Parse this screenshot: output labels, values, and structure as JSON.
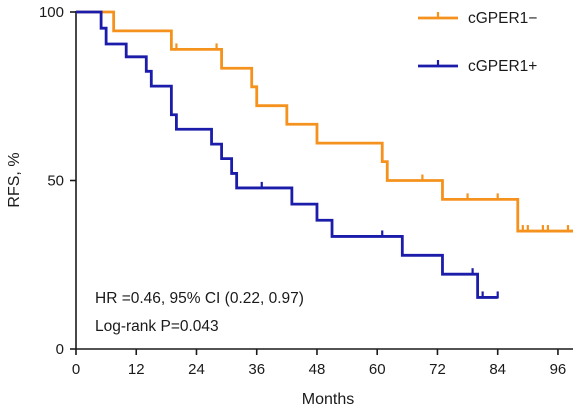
{
  "chart_data": {
    "type": "line",
    "subtype": "kaplan-meier step",
    "xlabel": "Months",
    "ylabel": "RFS, %",
    "xlim": [
      0,
      99
    ],
    "ylim": [
      0,
      100
    ],
    "xticks": [
      0,
      12,
      24,
      36,
      48,
      60,
      72,
      84,
      96
    ],
    "yticks": [
      0,
      50,
      100
    ],
    "grid": false,
    "legend_position": "top-right",
    "series": [
      {
        "name": "cGPER1−",
        "color": "#F5921E",
        "steps": [
          [
            0,
            100
          ],
          [
            7.5,
            94.4
          ],
          [
            19,
            88.9
          ],
          [
            29,
            83.3
          ],
          [
            35,
            77.8
          ],
          [
            36,
            72.2
          ],
          [
            42,
            66.7
          ],
          [
            48,
            61.1
          ],
          [
            61,
            55.6
          ],
          [
            62,
            50.0
          ],
          [
            73,
            44.4
          ],
          [
            88,
            35.0
          ],
          [
            99,
            35.0
          ]
        ],
        "censored": [
          [
            20,
            88.9
          ],
          [
            28,
            88.9
          ],
          [
            69,
            50.0
          ],
          [
            78,
            44.4
          ],
          [
            84,
            44.4
          ],
          [
            89,
            35.0
          ],
          [
            90,
            35.0
          ],
          [
            93,
            35.0
          ],
          [
            94,
            35.0
          ],
          [
            98,
            35.0
          ]
        ]
      },
      {
        "name": "cGPER1+",
        "color": "#1B1DAA",
        "steps": [
          [
            0,
            100
          ],
          [
            5,
            95.2
          ],
          [
            6,
            90.5
          ],
          [
            10,
            86.7
          ],
          [
            14,
            82.4
          ],
          [
            15,
            78.0
          ],
          [
            19,
            69.5
          ],
          [
            20,
            65.2
          ],
          [
            27,
            60.8
          ],
          [
            29,
            56.5
          ],
          [
            31,
            52.1
          ],
          [
            32,
            47.8
          ],
          [
            43,
            43.0
          ],
          [
            48,
            38.2
          ],
          [
            51,
            33.4
          ],
          [
            65,
            27.8
          ],
          [
            73,
            22.2
          ],
          [
            80,
            15.3
          ],
          [
            84,
            15.3
          ]
        ],
        "censored": [
          [
            37,
            47.8
          ],
          [
            61,
            33.4
          ],
          [
            79,
            22.2
          ],
          [
            81,
            15.3
          ],
          [
            84,
            15.3
          ]
        ]
      }
    ],
    "annotations": [
      "HR =0.46, 95% CI (0.22, 0.97)",
      "Log-rank P=0.043"
    ]
  }
}
